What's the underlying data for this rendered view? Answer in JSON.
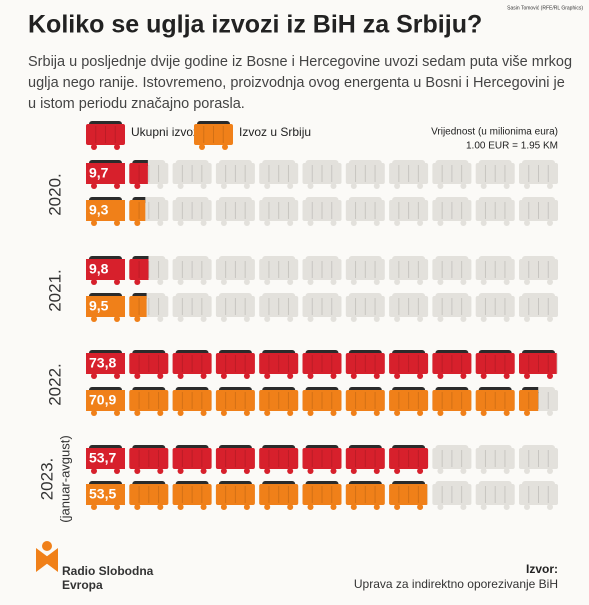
{
  "chart_data": {
    "type": "pictogram-bar",
    "title": "Koliko se uglja izvozi iz BiH za Srbiju?",
    "credit": "Sasin Tomović (RFE/RL Graphics)",
    "subtitle": [
      "Srbija u posljednje dvije godine iz Bosne i Hercegovine uvozi sedam puta više mrkog",
      "uglja nego ranije. Istovremeno, proizvodnja ovog energenta u Bosni i Hercegovini je",
      "u istom periodu značajno porasla."
    ],
    "unit_note": [
      "Vrijednost (u milionima eura)",
      "1.00 EUR = 1.95 KM"
    ],
    "categories": [
      "2020.",
      "2021.",
      "2022.",
      "2023."
    ],
    "category_notes": [
      null,
      null,
      null,
      "(januar-avgust)"
    ],
    "xlim": [
      0,
      74
    ],
    "series": [
      {
        "name": "Ukupni izvoz",
        "color": "#d7202c",
        "values": [
          9.7,
          9.8,
          73.8,
          53.7
        ],
        "value_labels": [
          "9,7",
          "9,8",
          "73,8",
          "53,7"
        ]
      },
      {
        "name": "Izvoz u Srbiju",
        "color": "#f08019",
        "values": [
          9.3,
          9.5,
          70.9,
          53.5
        ],
        "value_labels": [
          "9,3",
          "9,5",
          "70,9",
          "53,5"
        ]
      }
    ],
    "brand": [
      "Radio Slobodna",
      "Evropa"
    ],
    "source": [
      "Izvor:",
      "Uprava za indirektno oporezivanje BiH"
    ]
  }
}
